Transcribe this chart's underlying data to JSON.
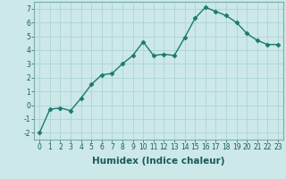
{
  "x": [
    0,
    1,
    2,
    3,
    4,
    5,
    6,
    7,
    8,
    9,
    10,
    11,
    12,
    13,
    14,
    15,
    16,
    17,
    18,
    19,
    20,
    21,
    22,
    23
  ],
  "y": [
    -2.0,
    -0.3,
    -0.2,
    -0.4,
    0.5,
    1.5,
    2.2,
    2.3,
    3.0,
    3.6,
    4.6,
    3.6,
    3.7,
    3.6,
    4.9,
    6.3,
    7.1,
    6.8,
    6.5,
    6.0,
    5.2,
    4.7,
    4.4,
    4.4
  ],
  "line_color": "#1a7a6e",
  "marker": "D",
  "marker_size": 2.5,
  "bg_color": "#cce8e8",
  "grid_color": "#aed4d4",
  "xlabel": "Humidex (Indice chaleur)",
  "ylim": [
    -2.5,
    7.5
  ],
  "xlim": [
    -0.5,
    23.5
  ],
  "yticks": [
    -2,
    -1,
    0,
    1,
    2,
    3,
    4,
    5,
    6,
    7
  ],
  "xticks": [
    0,
    1,
    2,
    3,
    4,
    5,
    6,
    7,
    8,
    9,
    10,
    11,
    12,
    13,
    14,
    15,
    16,
    17,
    18,
    19,
    20,
    21,
    22,
    23
  ],
  "tick_fontsize": 5.5,
  "xlabel_fontsize": 7.5,
  "linewidth": 1.0
}
